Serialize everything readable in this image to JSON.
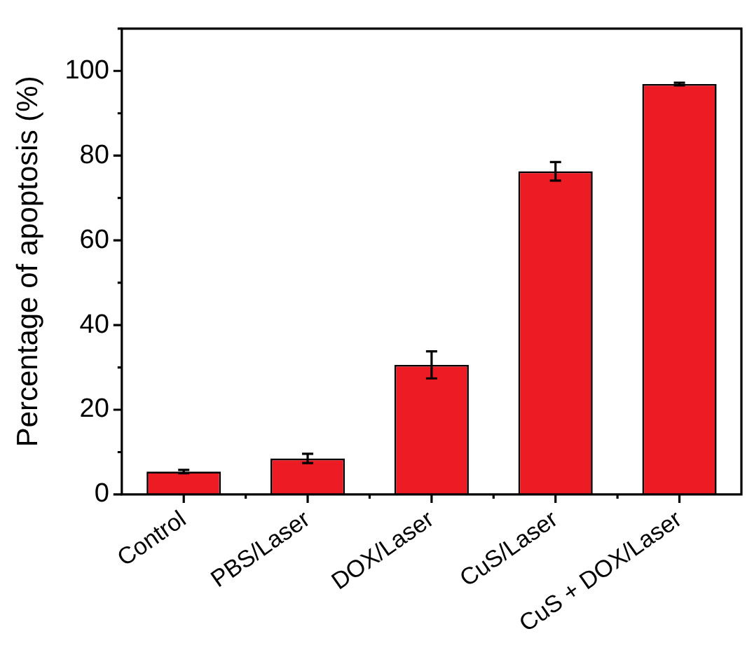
{
  "chart_data": {
    "type": "bar",
    "ylabel": "Percentage of apoptosis (%)",
    "categories": [
      "Control",
      "PBS/Laser",
      "DOX/Laser",
      "CuS/Laser",
      "CuS + DOX/Laser"
    ],
    "series": [
      {
        "color": "#ed1c24",
        "values": [
          5.4,
          8.5,
          30.6,
          76.3,
          96.9
        ],
        "errors": [
          0.4,
          1.1,
          3.2,
          2.2,
          0.3
        ]
      }
    ],
    "ylim": [
      0,
      110
    ],
    "yticks": [
      0,
      20,
      40,
      60,
      80,
      100
    ],
    "grid": false,
    "legend": false
  }
}
